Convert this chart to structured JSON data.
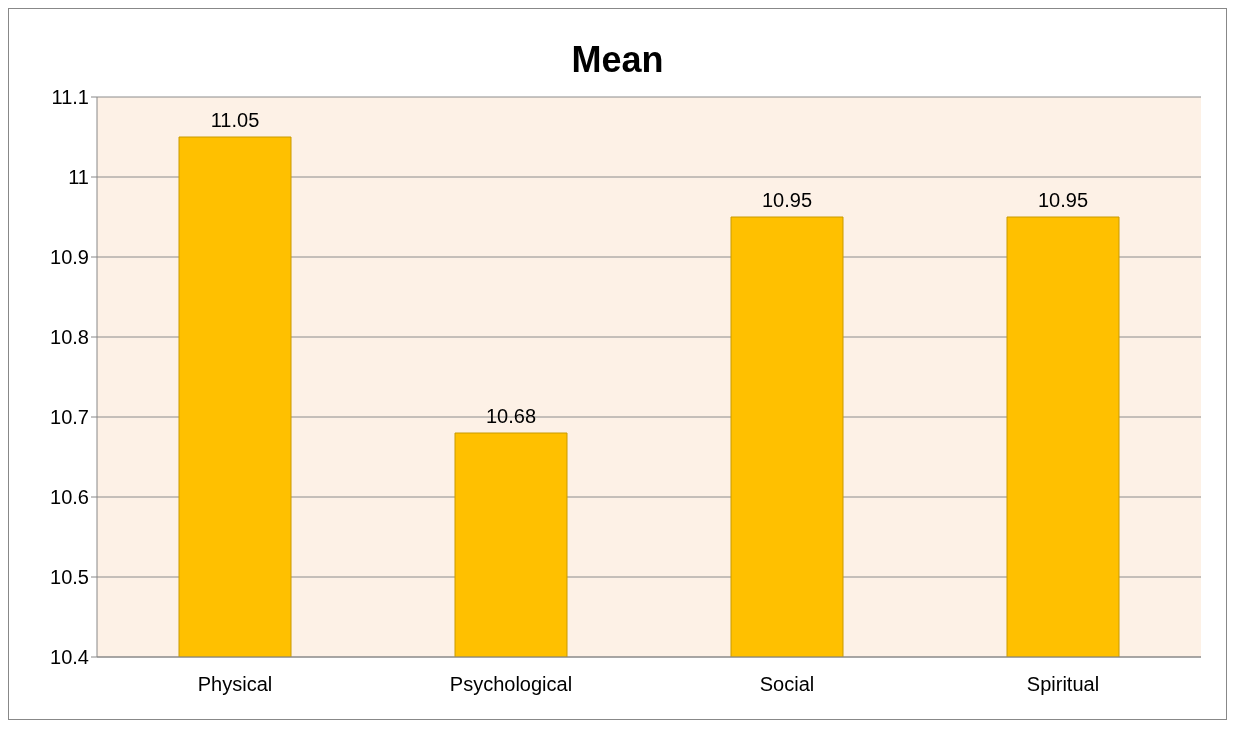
{
  "chart_data": {
    "type": "bar",
    "title": "Mean",
    "categories": [
      "Physical",
      "Psychological",
      "Social",
      "Spiritual"
    ],
    "values": [
      11.05,
      10.68,
      10.95,
      10.95
    ],
    "color": "#ffc000",
    "ylim": [
      10.4,
      11.1
    ],
    "yticks": [
      10.4,
      10.5,
      10.6,
      10.7,
      10.8,
      10.9,
      11,
      11.1
    ],
    "grid": "y",
    "data_labels": true,
    "legend": false
  }
}
